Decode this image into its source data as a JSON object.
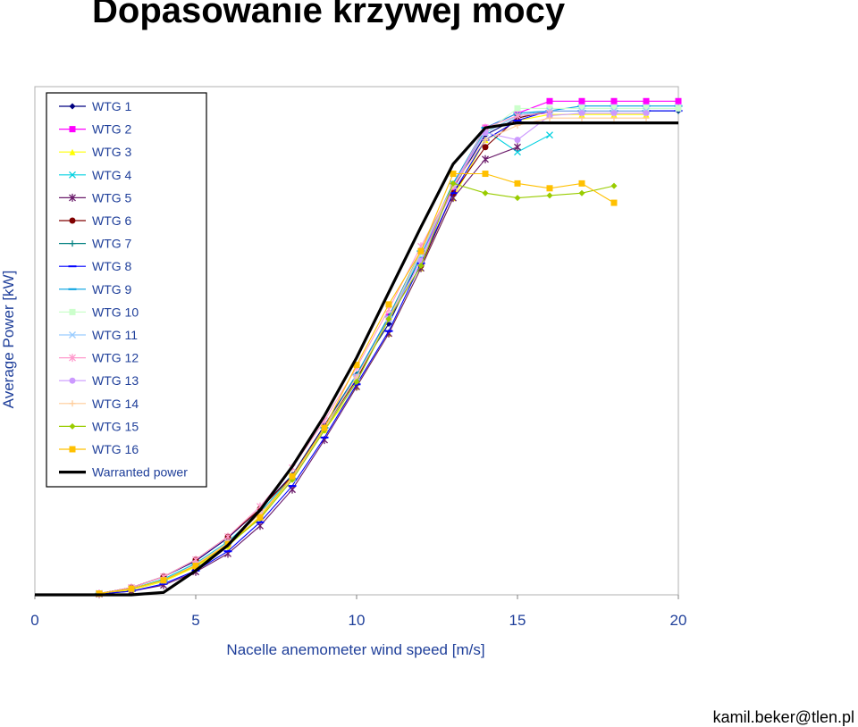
{
  "slide": {
    "title": "Dopasowanie krzywej mocy",
    "footer": "kamil.beker@tlen.pl"
  },
  "chart_data": {
    "type": "line",
    "xlabel": "Nacelle anemometer wind speed [m/s]",
    "ylabel": "Average Power [kW]",
    "xlim": [
      0,
      20
    ],
    "ylim": [
      0,
      2100
    ],
    "xticks": [
      "0",
      "5",
      "10",
      "15",
      "20"
    ],
    "legend_position": "top-left",
    "grid": false,
    "series": [
      {
        "name": "WTG 1",
        "color": "#000080",
        "marker": "diamond",
        "x": [
          2,
          3,
          4,
          5,
          6,
          7,
          8,
          9,
          10,
          11,
          12,
          13,
          14,
          15,
          16,
          17,
          18,
          19,
          20
        ],
        "y": [
          5,
          30,
          75,
          140,
          235,
          355,
          495,
          700,
          910,
          1120,
          1400,
          1680,
          1900,
          1970,
          2000,
          2000,
          2000,
          2000,
          2000
        ]
      },
      {
        "name": "WTG 2",
        "color": "#ff00ff",
        "marker": "square",
        "x": [
          2,
          3,
          4,
          5,
          6,
          7,
          8,
          9,
          10,
          11,
          12,
          13,
          14,
          15,
          16,
          17,
          18,
          19,
          20
        ],
        "y": [
          5,
          25,
          60,
          125,
          215,
          335,
          480,
          690,
          900,
          1150,
          1400,
          1680,
          1930,
          1990,
          2040,
          2040,
          2040,
          2040,
          2040
        ]
      },
      {
        "name": "WTG 3",
        "color": "#ffff00",
        "marker": "triangle",
        "x": [
          2,
          3,
          4,
          5,
          6,
          7,
          8,
          9,
          10,
          11,
          12,
          13,
          14,
          15,
          16,
          17,
          18,
          19
        ],
        "y": [
          5,
          20,
          55,
          115,
          200,
          325,
          480,
          680,
          860,
          1080,
          1350,
          1640,
          1880,
          1960,
          1985,
          1985,
          1985,
          1985
        ]
      },
      {
        "name": "WTG 4",
        "color": "#00d0e0",
        "marker": "x",
        "x": [
          2,
          3,
          4,
          5,
          6,
          7,
          8,
          9,
          10,
          11,
          12,
          13,
          14,
          15,
          16
        ],
        "y": [
          5,
          25,
          65,
          130,
          220,
          340,
          490,
          690,
          890,
          1140,
          1400,
          1700,
          1920,
          1830,
          1900
        ]
      },
      {
        "name": "WTG 5",
        "color": "#6a1b6a",
        "marker": "star",
        "x": [
          2,
          3,
          4,
          5,
          6,
          7,
          8,
          9,
          10,
          11,
          12,
          13,
          14,
          15
        ],
        "y": [
          3,
          15,
          40,
          95,
          170,
          285,
          435,
          640,
          860,
          1080,
          1350,
          1640,
          1800,
          1850
        ]
      },
      {
        "name": "WTG 6",
        "color": "#800000",
        "marker": "circle",
        "x": [
          2,
          3,
          4,
          5,
          6,
          7,
          8,
          9,
          10,
          11,
          12,
          13,
          14,
          15,
          16,
          17,
          18,
          19
        ],
        "y": [
          5,
          30,
          75,
          145,
          240,
          355,
          490,
          690,
          890,
          1140,
          1360,
          1660,
          1850,
          1970,
          2000,
          2000,
          2000,
          2000
        ]
      },
      {
        "name": "WTG 7",
        "color": "#008080",
        "marker": "plus",
        "x": [
          2,
          3,
          4,
          5,
          6,
          7,
          8,
          9,
          10,
          11,
          12,
          13,
          14,
          15,
          16,
          17,
          18,
          19,
          20
        ],
        "y": [
          5,
          25,
          60,
          125,
          215,
          335,
          480,
          690,
          910,
          1150,
          1420,
          1690,
          1910,
          1980,
          2000,
          2000,
          2000,
          2000,
          2000
        ]
      },
      {
        "name": "WTG 8",
        "color": "#0000ff",
        "marker": "dash",
        "x": [
          2,
          3,
          4,
          5,
          6,
          7,
          8,
          9,
          10,
          11,
          12,
          13,
          14,
          15,
          16,
          17,
          18,
          19,
          20
        ],
        "y": [
          3,
          15,
          45,
          100,
          180,
          300,
          450,
          650,
          870,
          1090,
          1370,
          1660,
          1880,
          1960,
          2000,
          2000,
          2000,
          2000,
          2000
        ]
      },
      {
        "name": "WTG 9",
        "color": "#00a0e0",
        "marker": "dash",
        "x": [
          2,
          3,
          4,
          5,
          6,
          7,
          8,
          9,
          10,
          11,
          12,
          13,
          14,
          15,
          16,
          17,
          18,
          19,
          20
        ],
        "y": [
          5,
          25,
          60,
          125,
          215,
          335,
          480,
          690,
          910,
          1150,
          1420,
          1700,
          1930,
          1990,
          2000,
          2020,
          2020,
          2020,
          2020
        ]
      },
      {
        "name": "WTG 10",
        "color": "#ccffcc",
        "marker": "square",
        "x": [
          2,
          3,
          4,
          5,
          6,
          7,
          8,
          9,
          10,
          11,
          12,
          13,
          14,
          15,
          16,
          17,
          18,
          19,
          20
        ],
        "y": [
          5,
          25,
          60,
          125,
          215,
          335,
          480,
          690,
          900,
          1140,
          1410,
          1690,
          1910,
          2010,
          2010,
          2010,
          2010,
          2010,
          2010
        ]
      },
      {
        "name": "WTG 11",
        "color": "#99ccff",
        "marker": "x",
        "x": [
          2,
          3,
          4,
          5,
          6,
          7,
          8,
          9,
          10,
          11,
          12,
          13,
          14,
          15,
          16,
          17,
          18,
          19
        ],
        "y": [
          5,
          25,
          60,
          125,
          215,
          335,
          480,
          690,
          900,
          1140,
          1410,
          1690,
          1910,
          1980,
          2000,
          2000,
          2000,
          2000
        ]
      },
      {
        "name": "WTG 12",
        "color": "#ff99cc",
        "marker": "star",
        "x": [
          2,
          3,
          4,
          5,
          6,
          7,
          8,
          9,
          10,
          11,
          12,
          13,
          14,
          15,
          16
        ],
        "y": [
          5,
          30,
          75,
          145,
          240,
          365,
          525,
          720,
          940,
          1180,
          1440,
          1690,
          1930,
          1980,
          1990
        ]
      },
      {
        "name": "WTG 13",
        "color": "#cc99ff",
        "marker": "circle",
        "x": [
          2,
          3,
          4,
          5,
          6,
          7,
          8,
          9,
          10,
          11,
          12,
          13,
          14,
          15,
          16,
          17,
          18,
          19
        ],
        "y": [
          5,
          25,
          60,
          125,
          215,
          335,
          480,
          690,
          900,
          1140,
          1380,
          1690,
          1910,
          1880,
          1980,
          1990,
          1990,
          1990
        ]
      },
      {
        "name": "WTG 14",
        "color": "#ffcc99",
        "marker": "plus",
        "x": [
          2,
          3,
          4,
          5,
          6,
          7,
          8,
          9,
          10,
          11,
          12,
          13,
          14,
          15,
          16,
          17,
          18,
          19
        ],
        "y": [
          5,
          25,
          60,
          125,
          215,
          335,
          480,
          690,
          900,
          1140,
          1420,
          1690,
          1880,
          1940,
          1970,
          1970,
          1970,
          1970
        ]
      },
      {
        "name": "WTG 15",
        "color": "#99cc00",
        "marker": "diamond",
        "x": [
          2,
          3,
          4,
          5,
          6,
          7,
          8,
          9,
          10,
          11,
          12,
          13,
          14,
          15,
          16,
          17,
          18
        ],
        "y": [
          5,
          25,
          60,
          120,
          205,
          315,
          475,
          680,
          880,
          1140,
          1360,
          1700,
          1660,
          1640,
          1650,
          1660,
          1690
        ]
      },
      {
        "name": "WTG 16",
        "color": "#ffc000",
        "marker": "square",
        "x": [
          2,
          3,
          4,
          5,
          6,
          7,
          8,
          9,
          10,
          11,
          12,
          13,
          14,
          15,
          16,
          17,
          18
        ],
        "y": [
          5,
          25,
          60,
          120,
          210,
          320,
          490,
          690,
          950,
          1200,
          1420,
          1740,
          1740,
          1700,
          1680,
          1700,
          1620
        ]
      },
      {
        "name": "Warranted power",
        "color": "#000000",
        "marker": "none",
        "x": [
          2,
          3,
          4,
          5,
          6,
          7,
          8,
          9,
          10,
          11,
          12,
          13,
          14,
          15,
          16,
          17,
          18,
          19,
          20
        ],
        "y": [
          0,
          0,
          10,
          100,
          205,
          350,
          530,
          740,
          980,
          1250,
          1520,
          1780,
          1930,
          1950,
          1950,
          1950,
          1950,
          1950,
          1950
        ]
      }
    ]
  }
}
